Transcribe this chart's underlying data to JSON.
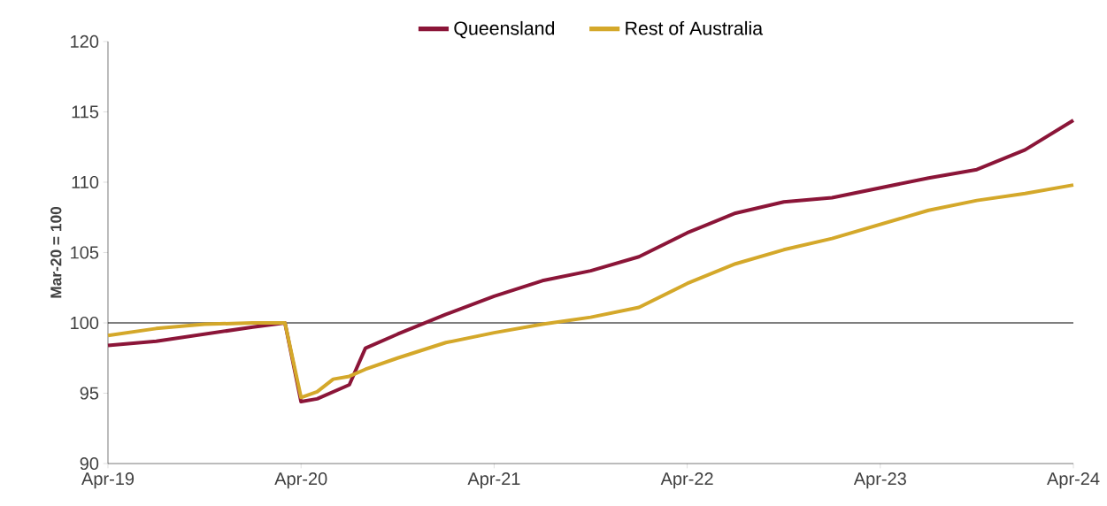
{
  "chart_data": {
    "type": "line",
    "ylabel": "Mar-20 = 100",
    "x": [
      "2019-04",
      "2019-07",
      "2019-10",
      "2020-01",
      "2020-03",
      "2020-04",
      "2020-05",
      "2020-06",
      "2020-07",
      "2020-08",
      "2020-10",
      "2021-01",
      "2021-04",
      "2021-07",
      "2021-10",
      "2022-01",
      "2022-04",
      "2022-07",
      "2022-10",
      "2023-01",
      "2023-04",
      "2023-07",
      "2023-10",
      "2024-01",
      "2024-04"
    ],
    "series": [
      {
        "name": "Queensland",
        "color": "#8b1538",
        "values": [
          98.4,
          98.7,
          99.2,
          99.7,
          100.0,
          94.4,
          94.6,
          95.1,
          95.6,
          98.2,
          99.2,
          100.6,
          101.9,
          103.0,
          103.7,
          104.7,
          106.4,
          107.8,
          108.6,
          108.9,
          109.6,
          110.3,
          110.9,
          112.3,
          114.4
        ]
      },
      {
        "name": "Rest of Australia",
        "color": "#d4a82a",
        "values": [
          99.1,
          99.6,
          99.9,
          100.0,
          100.0,
          94.7,
          95.1,
          96.0,
          96.2,
          96.7,
          97.5,
          98.6,
          99.3,
          99.9,
          100.4,
          101.1,
          102.8,
          104.2,
          105.2,
          106.0,
          107.0,
          108.0,
          108.7,
          109.2,
          109.8
        ]
      }
    ],
    "xlim": [
      "2019-04",
      "2024-04"
    ],
    "xticks": [
      {
        "value": "2019-04",
        "label": "Apr-19"
      },
      {
        "value": "2020-04",
        "label": "Apr-20"
      },
      {
        "value": "2021-04",
        "label": "Apr-21"
      },
      {
        "value": "2022-04",
        "label": "Apr-22"
      },
      {
        "value": "2023-04",
        "label": "Apr-23"
      },
      {
        "value": "2024-04",
        "label": "Apr-24"
      }
    ],
    "ylim": [
      90,
      120
    ],
    "yticks": [
      90,
      95,
      100,
      105,
      110,
      115,
      120
    ],
    "ref_lines": [
      {
        "axis": "y",
        "value": 100,
        "color": "#000000"
      }
    ],
    "legend": "top",
    "grid": false,
    "marker": "none",
    "line_style": "solid"
  }
}
